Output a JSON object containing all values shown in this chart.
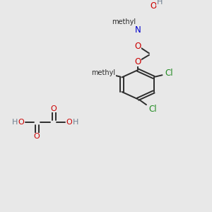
{
  "bg_color": "#e8e8e8",
  "bond_color": "#2d2d2d",
  "C": "#2d2d2d",
  "H": "#708090",
  "O": "#cc0000",
  "N": "#0000cc",
  "Cl": "#228B22",
  "figsize": [
    3.0,
    3.0
  ],
  "dpi": 100
}
